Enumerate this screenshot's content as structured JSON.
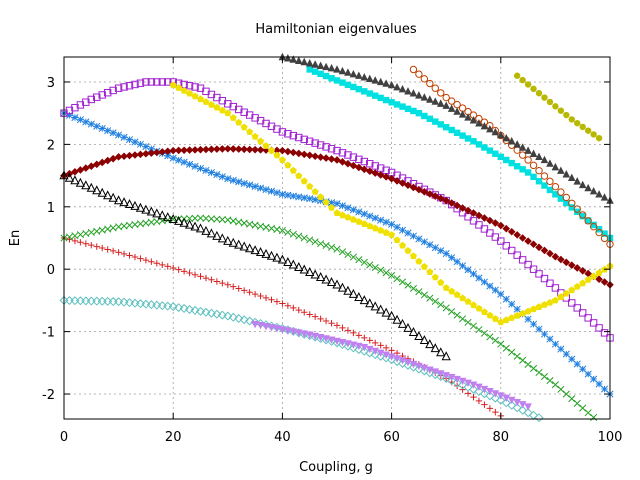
{
  "chart_data": {
    "type": "scatter",
    "title": "Hamiltonian eigenvalues",
    "xlabel": "Coupling, g",
    "ylabel": "En",
    "xlim": [
      0,
      100
    ],
    "ylim": [
      -2.4,
      3.4
    ],
    "xticks": [
      0,
      20,
      40,
      60,
      80,
      100
    ],
    "yticks": [
      -2,
      -1,
      0,
      1,
      2,
      3
    ],
    "grid": true,
    "legend": "none",
    "series": [
      {
        "marker": "plus",
        "color": "#d62020",
        "x": [
          0,
          10,
          20,
          30,
          40,
          50,
          60,
          70,
          80
        ],
        "y": [
          0.5,
          0.27,
          0.02,
          -0.25,
          -0.55,
          -0.9,
          -1.3,
          -1.75,
          -2.35
        ]
      },
      {
        "marker": "cross",
        "color": "#20a020",
        "x": [
          0,
          10,
          20,
          25,
          30,
          40,
          50,
          60,
          70,
          80,
          90,
          100
        ],
        "y": [
          0.5,
          0.68,
          0.8,
          0.82,
          0.79,
          0.62,
          0.32,
          -0.1,
          -0.62,
          -1.2,
          -1.85,
          -2.6
        ]
      },
      {
        "marker": "star",
        "color": "#2080e0",
        "x": [
          0,
          10,
          20,
          30,
          40,
          45,
          50,
          60,
          70,
          80,
          90,
          100
        ],
        "y": [
          2.5,
          2.15,
          1.78,
          1.45,
          1.2,
          1.13,
          1.05,
          0.72,
          0.25,
          -0.4,
          -1.2,
          -2.0
        ]
      },
      {
        "marker": "open-square",
        "color": "#a020d0",
        "x": [
          0,
          5,
          10,
          15,
          20,
          25,
          30,
          40,
          50,
          60,
          70,
          80,
          90,
          100
        ],
        "y": [
          2.5,
          2.72,
          2.9,
          3.0,
          3.0,
          2.9,
          2.65,
          2.2,
          1.9,
          1.55,
          1.1,
          0.45,
          -0.3,
          -1.1
        ]
      },
      {
        "marker": "filled-diamond",
        "color": "#8b0000",
        "x": [
          0,
          5,
          10,
          15,
          20,
          30,
          40,
          50,
          60,
          70,
          80,
          90,
          100
        ],
        "y": [
          1.5,
          1.65,
          1.8,
          1.85,
          1.9,
          1.93,
          1.9,
          1.75,
          1.45,
          1.1,
          0.7,
          0.2,
          -0.25
        ]
      },
      {
        "marker": "open-triangle",
        "color": "#000000",
        "x": [
          0,
          5,
          10,
          15,
          20,
          25,
          30,
          40,
          50,
          60,
          70
        ],
        "y": [
          1.5,
          1.3,
          1.1,
          0.95,
          0.8,
          0.65,
          0.45,
          0.15,
          -0.25,
          -0.75,
          -1.4
        ]
      },
      {
        "marker": "filled-square",
        "color": "#00e0e0",
        "x": [
          45,
          55,
          65,
          75,
          85,
          95,
          100
        ],
        "y": [
          3.2,
          2.85,
          2.5,
          2.05,
          1.55,
          0.85,
          0.5
        ]
      },
      {
        "marker": "open-circle",
        "color": "#c04000",
        "x": [
          64,
          70,
          78,
          85,
          92,
          100
        ],
        "y": [
          3.2,
          2.75,
          2.3,
          1.75,
          1.15,
          0.4
        ]
      },
      {
        "marker": "filled-triangle",
        "color": "#404040",
        "x": [
          40,
          50,
          60,
          70,
          80,
          88,
          95,
          100
        ],
        "y": [
          3.4,
          3.2,
          2.95,
          2.62,
          2.15,
          1.75,
          1.35,
          1.1
        ]
      },
      {
        "marker": "filled-circle",
        "color": "#b8b800",
        "x": [
          83,
          88,
          93,
          98
        ],
        "y": [
          3.1,
          2.75,
          2.4,
          2.1
        ]
      },
      {
        "marker": "open-diamond",
        "color": "#60c0c0",
        "x": [
          0,
          10,
          20,
          30,
          40,
          50,
          60,
          70,
          80,
          90
        ],
        "y": [
          -0.5,
          -0.52,
          -0.6,
          -0.75,
          -0.95,
          -1.18,
          -1.45,
          -1.75,
          -2.1,
          -2.5
        ]
      },
      {
        "marker": "filled-inv-triangle",
        "color": "#c080f0",
        "x": [
          35,
          45,
          55,
          65,
          75,
          85
        ],
        "y": [
          -0.88,
          -1.05,
          -1.25,
          -1.55,
          -1.85,
          -2.2
        ]
      },
      {
        "marker": "filled-pentagon",
        "color": "#f0e000",
        "x": [
          20,
          30,
          40,
          50,
          60,
          70,
          80,
          90,
          100
        ],
        "y": [
          2.95,
          2.5,
          1.75,
          0.9,
          0.55,
          -0.3,
          -0.85,
          -0.5,
          0.05
        ]
      }
    ]
  }
}
